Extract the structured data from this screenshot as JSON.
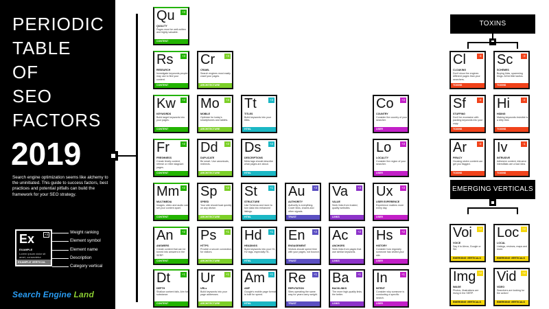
{
  "side": {
    "title_lines": [
      "PERIODIC",
      "TABLE",
      "OF",
      "SEO",
      "FACTORS"
    ],
    "year": "2019",
    "intro": "Search engine optimization seems like alchemy to the uninitiated. This guide to success factors, best practices and potential pitfalls can build the framework for your SEO strategy.",
    "legend": {
      "symbol": "Ex",
      "rank": "+3",
      "name": "EXAMPLE",
      "description": "Lorem ipsum dolor sit amet, consectetur",
      "category": "EXAMPLE VERTICAL",
      "labels": [
        "Weight ranking",
        "Element symbol",
        "Element name",
        "Description",
        "Category vertical"
      ]
    },
    "brand_a": "Search Engine",
    "brand_b": "Land"
  },
  "sections": {
    "toxins": "TOXINS",
    "emerging": "EMERGING VERTICALS"
  },
  "tiles": [
    {
      "sym": "Qu",
      "rank": "+3",
      "name": "QUALITY",
      "desc": "Pages must be well-written and highly valuable.",
      "cat": "CONTENT",
      "c": "content"
    },
    {
      "sym": "Rs",
      "rank": "+3",
      "name": "RESEARCH",
      "desc": "Investigate keywords people may use to find your content.",
      "cat": "CONTENT",
      "c": "content"
    },
    {
      "sym": "Cr",
      "rank": "+3",
      "name": "CRAWL",
      "desc": "Search engines must easily crawl your pages.",
      "cat": "ARCHITECTURE",
      "c": "architecture"
    },
    {
      "sym": "Kw",
      "rank": "+2",
      "name": "KEYWORDS",
      "desc": "Build target keywords into your pages.",
      "cat": "CONTENT",
      "c": "content"
    },
    {
      "sym": "Mo",
      "rank": "+3",
      "name": "MOBILE",
      "desc": "Optimize for today's smartphones and tablets.",
      "cat": "ARCHITECTURE",
      "c": "architecture"
    },
    {
      "sym": "Tt",
      "rank": "+3",
      "name": "TITLES",
      "desc": "Build keywords into your titles.",
      "cat": "HTML",
      "c": "html"
    },
    {
      "sym": "Co",
      "rank": "+3",
      "name": "COUNTRY",
      "desc": "Consider the country of your searcher.",
      "cat": "USER",
      "c": "user"
    },
    {
      "sym": "Fr",
      "rank": "+2",
      "name": "FRESHNESS",
      "desc": "Create timely content, refresh or retire stagnant pages.",
      "cat": "CONTENT",
      "c": "content"
    },
    {
      "sym": "Dd",
      "rank": "+2",
      "name": "DUPLICATE",
      "desc": "Be smart. Use canonicals, redirects.",
      "cat": "ARCHITECTURE",
      "c": "architecture"
    },
    {
      "sym": "Ds",
      "rank": "+2",
      "name": "DESCRIPTIONS",
      "desc": "Meta tags should describe what pages are about.",
      "cat": "HTML",
      "c": "html"
    },
    {
      "sym": "Lo",
      "rank": "+3",
      "name": "LOCALITY",
      "desc": "Consider the region of your searcher.",
      "cat": "USER",
      "c": "user"
    },
    {
      "sym": "Mm",
      "rank": "+2",
      "name": "MULTIMEDIA",
      "desc": "Images, video and audio can set your content apart.",
      "cat": "CONTENT",
      "c": "content"
    },
    {
      "sym": "Sp",
      "rank": "+2",
      "name": "SPEED",
      "desc": "Your site should load quickly on any device.",
      "cat": "ARCHITECTURE",
      "c": "architecture"
    },
    {
      "sym": "St",
      "rank": "+1",
      "name": "STRUCTURE",
      "desc": "Use Schema and more to turn data into enhanced listings.",
      "cat": "HTML",
      "c": "html"
    },
    {
      "sym": "Au",
      "rank": "+3",
      "name": "AUTHORITY",
      "desc": "Authority is everything. Cover links, shares and other signals.",
      "cat": "TRUST",
      "c": "trust"
    },
    {
      "sym": "Va",
      "rank": "+3",
      "name": "VALUE",
      "desc": "Seek links from trusted, quality websites.",
      "cat": "LINKS",
      "c": "links"
    },
    {
      "sym": "Ux",
      "rank": "+3",
      "name": "USER EXPERIENCE",
      "desc": "Experience matters more every day.",
      "cat": "USER",
      "c": "user"
    },
    {
      "sym": "An",
      "rank": "+2",
      "name": "ANSWERS",
      "desc": "Create content that can be turned into answers in the SERP.",
      "cat": "CONTENT",
      "c": "content"
    },
    {
      "sym": "Ps",
      "rank": "+1",
      "name": "HTTPS",
      "desc": "Provide a secure connection for visitors.",
      "cat": "ARCHITECTURE",
      "c": "architecture"
    },
    {
      "sym": "Hd",
      "rank": "+1",
      "name": "HEADINGS",
      "desc": "Build keywords into your H1, H2 tags, especially H1.",
      "cat": "HTML",
      "c": "html"
    },
    {
      "sym": "En",
      "rank": "+2",
      "name": "ENGAGEMENT",
      "desc": "Visitors should spend time with your pages, not bounce.",
      "cat": "TRUST",
      "c": "trust"
    },
    {
      "sym": "Ac",
      "rank": "+2",
      "name": "ANCHORS",
      "desc": "Seek links from pages that use similar keywords.",
      "cat": "LINKS",
      "c": "links"
    },
    {
      "sym": "Hs",
      "rank": "+2",
      "name": "HISTORY",
      "desc": "Consider how regularly someone has visited your site.",
      "cat": "USER",
      "c": "user"
    },
    {
      "sym": "Dt",
      "rank": "+1",
      "name": "DEPTH",
      "desc": "Shallow content fails. Aim for substance.",
      "cat": "CONTENT",
      "c": "content"
    },
    {
      "sym": "Ur",
      "rank": "+1",
      "name": "URLs",
      "desc": "Build keywords into your page addresses.",
      "cat": "ARCHITECTURE",
      "c": "architecture"
    },
    {
      "sym": "Am",
      "rank": "+1",
      "name": "AMP",
      "desc": "Google's mobile page format is built for speed.",
      "cat": "HTML",
      "c": "html"
    },
    {
      "sym": "Re",
      "rank": "+1",
      "name": "REPUTATION",
      "desc": "Sites operating the same way for years carry weight.",
      "cat": "TRUST",
      "c": "trust"
    },
    {
      "sym": "Ba",
      "rank": "+1",
      "name": "BACKLINKS",
      "desc": "The more high-quality links, the better.",
      "cat": "LINKS",
      "c": "links"
    },
    {
      "sym": "In",
      "rank": "+1",
      "name": "INTENT",
      "desc": "Consider why someone is conducting a specific search.",
      "cat": "USER",
      "c": "user"
    },
    {
      "sym": "Cl",
      "rank": "-3",
      "name": "CLOAKING",
      "desc": "Don't show the engines different pages than your searchers.",
      "cat": "TOXINS",
      "c": "toxins"
    },
    {
      "sym": "Sc",
      "rank": "-3",
      "name": "SCHEMES",
      "desc": "Buying links, spamming blogs. All terrible tactics.",
      "cat": "TOXINS",
      "c": "toxins"
    },
    {
      "sym": "Sf",
      "rank": "-2",
      "name": "STUFFING",
      "desc": "Don't be excessive with packing keywords into your copy.",
      "cat": "TOXINS",
      "c": "toxins"
    },
    {
      "sym": "Hi",
      "rank": "-2",
      "name": "HIDING",
      "desc": "Making keywords invisible is a dirty trick.",
      "cat": "TOXINS",
      "c": "toxins"
    },
    {
      "sym": "Ar",
      "rank": "-2",
      "name": "PIRACY",
      "desc": "Housing stolen content can get you flagged.",
      "cat": "TOXINS",
      "c": "toxins"
    },
    {
      "sym": "Iv",
      "rank": "-1",
      "name": "INTRUSIVE",
      "desc": "Adhesive content, intrusive interstitials are a bad idea.",
      "cat": "TOXINS",
      "c": "toxins"
    },
    {
      "sym": "Voi",
      "rank": "+2",
      "name": "VOICE",
      "desc": "Say it to Alexa, Google or Siri.",
      "cat": "EMERGING VERTICALS",
      "c": "emerging"
    },
    {
      "sym": "Loc",
      "rank": "+2",
      "name": "LOCAL",
      "desc": "Listings, reviews, maps and more.",
      "cat": "EMERGING VERTICALS",
      "c": "emerging"
    },
    {
      "sym": "Img",
      "rank": "+2",
      "name": "IMAGE",
      "desc": "Photos, illustrations are rising in the SERP.",
      "cat": "EMERGING VERTICALS",
      "c": "emerging"
    },
    {
      "sym": "Vid",
      "rank": "+2",
      "name": "VIDEO",
      "desc": "Searchers are looking for the action!",
      "cat": "EMERGING VERTICALS",
      "c": "emerging"
    }
  ]
}
